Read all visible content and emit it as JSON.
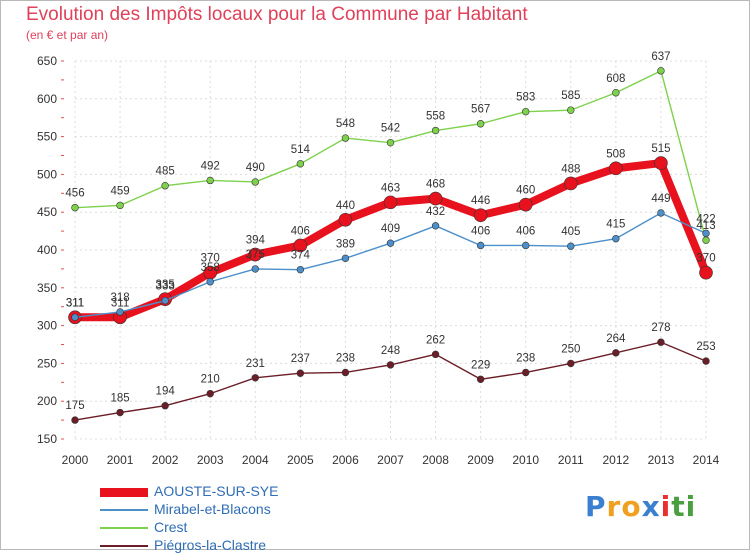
{
  "chart_data": {
    "type": "line",
    "title": "Evolution des Impôts locaux pour la Commune par Habitant",
    "subtitle": "(en € et par an)",
    "xlabel": "",
    "ylabel": "",
    "ylim": [
      150,
      650
    ],
    "yticks": [
      150,
      200,
      250,
      300,
      350,
      400,
      450,
      500,
      550,
      600,
      650
    ],
    "grid": true,
    "legend_position": "bottom-left",
    "categories": [
      "2000",
      "2001",
      "2002",
      "2003",
      "2004",
      "2005",
      "2006",
      "2007",
      "2008",
      "2009",
      "2010",
      "2011",
      "2012",
      "2013",
      "2014"
    ],
    "series": [
      {
        "name": "AOUSTE-SUR-SYE",
        "color": "#e8121e",
        "values": [
          311,
          311,
          335,
          370,
          394,
          406,
          440,
          463,
          468,
          446,
          460,
          488,
          508,
          515,
          370
        ]
      },
      {
        "name": "Mirabel-et-Blacons",
        "color": "#4d8fc9",
        "values": [
          311,
          318,
          333,
          358,
          375,
          374,
          389,
          409,
          432,
          406,
          406,
          405,
          415,
          449,
          422
        ]
      },
      {
        "name": "Crest",
        "color": "#7ed14d",
        "values": [
          456,
          459,
          485,
          492,
          490,
          514,
          548,
          542,
          558,
          567,
          583,
          585,
          608,
          637,
          413
        ]
      },
      {
        "name": "Piégros-la-Clastre",
        "color": "#6b1e28",
        "values": [
          175,
          185,
          194,
          210,
          231,
          237,
          238,
          248,
          262,
          229,
          238,
          250,
          264,
          278,
          253
        ]
      }
    ]
  },
  "branding": {
    "logo_text": [
      "P",
      "r",
      "o",
      "x",
      "i",
      "t",
      "i"
    ],
    "logo_colors": [
      "#3a7fd0",
      "#f0a020",
      "#f0a020",
      "#3a7fd0",
      "#e83030",
      "#4aa040",
      "#4aa040"
    ]
  }
}
